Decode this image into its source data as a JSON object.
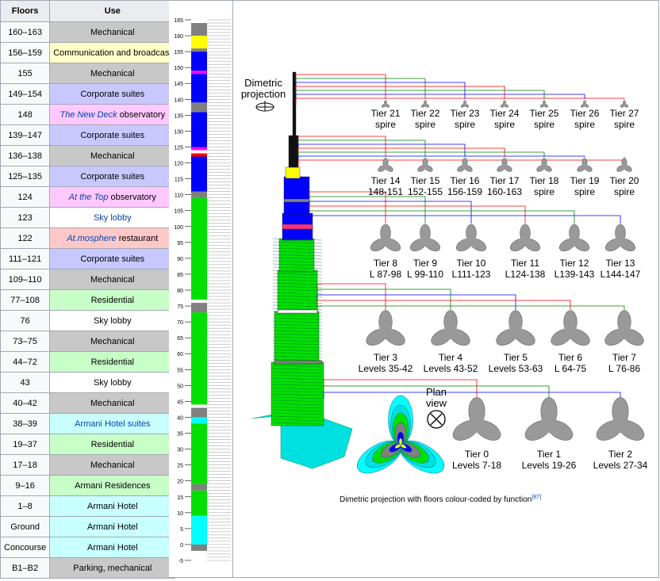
{
  "table": {
    "headers": [
      "Floors",
      "Use"
    ],
    "rows": [
      {
        "floors": "160–163",
        "use": "Mechanical",
        "cls": "c-mech"
      },
      {
        "floors": "156–159",
        "use": "Communication and broadcast",
        "cls": "c-comm"
      },
      {
        "floors": "155",
        "use": "Mechanical",
        "cls": "c-mech"
      },
      {
        "floors": "149–154",
        "use": "Corporate suites",
        "cls": "c-corp"
      },
      {
        "floors": "148",
        "use": "The New Deck observatory",
        "cls": "c-obs",
        "em": "The New Deck",
        "rest": " observatory"
      },
      {
        "floors": "139–147",
        "use": "Corporate suites",
        "cls": "c-corp"
      },
      {
        "floors": "136–138",
        "use": "Mechanical",
        "cls": "c-mech"
      },
      {
        "floors": "125–135",
        "use": "Corporate suites",
        "cls": "c-corp"
      },
      {
        "floors": "124",
        "use": "At the Top observatory",
        "cls": "c-obs",
        "em": "At the Top",
        "rest": " observatory"
      },
      {
        "floors": "123",
        "use": "Sky lobby",
        "cls": "c-sky",
        "link": true
      },
      {
        "floors": "122",
        "use": "At.mosphere restaurant",
        "cls": "c-rest",
        "em": "At.mosphere",
        "rest": " restaurant"
      },
      {
        "floors": "111–121",
        "use": "Corporate suites",
        "cls": "c-corp"
      },
      {
        "floors": "109–110",
        "use": "Mechanical",
        "cls": "c-mech"
      },
      {
        "floors": "77–108",
        "use": "Residential",
        "cls": "c-res"
      },
      {
        "floors": "76",
        "use": "Sky lobby",
        "cls": "c-sky"
      },
      {
        "floors": "73–75",
        "use": "Mechanical",
        "cls": "c-mech"
      },
      {
        "floors": "44–72",
        "use": "Residential",
        "cls": "c-res"
      },
      {
        "floors": "43",
        "use": "Sky lobby",
        "cls": "c-sky"
      },
      {
        "floors": "40–42",
        "use": "Mechanical",
        "cls": "c-mech"
      },
      {
        "floors": "38–39",
        "use": "Armani Hotel suites",
        "cls": "c-arm",
        "link": true
      },
      {
        "floors": "19–37",
        "use": "Residential",
        "cls": "c-res"
      },
      {
        "floors": "17–18",
        "use": "Mechanical",
        "cls": "c-mech"
      },
      {
        "floors": "9–16",
        "use": "Armani Residences",
        "cls": "c-res"
      },
      {
        "floors": "1–8",
        "use": "Armani Hotel",
        "cls": "c-arm"
      },
      {
        "floors": "Ground",
        "use": "Armani Hotel",
        "cls": "c-arm"
      },
      {
        "floors": "Concourse",
        "use": "Armani Hotel",
        "cls": "c-arm"
      },
      {
        "floors": "B1–B2",
        "use": "Parking, mechanical",
        "cls": "c-park"
      }
    ]
  },
  "scale": {
    "ticks": [
      "165",
      "160",
      "155",
      "150",
      "145",
      "140",
      "135",
      "130",
      "125",
      "120",
      "115",
      "110",
      "105",
      "100",
      "95",
      "90",
      "85",
      "80",
      "75",
      "70",
      "65",
      "60",
      "55",
      "50",
      "45",
      "40",
      "35",
      "30",
      "25",
      "20",
      "15",
      "10",
      "5",
      "0",
      "-5"
    ],
    "bands": [
      {
        "from": -2,
        "to": 0,
        "color": "#808080"
      },
      {
        "from": 0,
        "to": 9,
        "color": "#00ffff"
      },
      {
        "from": 9,
        "to": 17,
        "color": "#00e000"
      },
      {
        "from": 17,
        "to": 19,
        "color": "#808080"
      },
      {
        "from": 19,
        "to": 38,
        "color": "#00e000"
      },
      {
        "from": 38,
        "to": 40,
        "color": "#00ffff"
      },
      {
        "from": 40,
        "to": 43,
        "color": "#808080"
      },
      {
        "from": 43,
        "to": 44,
        "color": "#ffffff"
      },
      {
        "from": 44,
        "to": 73,
        "color": "#00e000"
      },
      {
        "from": 73,
        "to": 76,
        "color": "#808080"
      },
      {
        "from": 76,
        "to": 77,
        "color": "#ffffff"
      },
      {
        "from": 77,
        "to": 109,
        "color": "#00e000"
      },
      {
        "from": 109,
        "to": 111,
        "color": "#808080"
      },
      {
        "from": 111,
        "to": 122,
        "color": "#0000ff"
      },
      {
        "from": 122,
        "to": 123,
        "color": "#ff0000"
      },
      {
        "from": 123,
        "to": 124,
        "color": "#ffffff"
      },
      {
        "from": 124,
        "to": 125,
        "color": "#ff00ff"
      },
      {
        "from": 125,
        "to": 136,
        "color": "#0000ff"
      },
      {
        "from": 136,
        "to": 139,
        "color": "#808080"
      },
      {
        "from": 139,
        "to": 148,
        "color": "#0000ff"
      },
      {
        "from": 148,
        "to": 149,
        "color": "#ff00ff"
      },
      {
        "from": 149,
        "to": 155,
        "color": "#0000ff"
      },
      {
        "from": 155,
        "to": 156,
        "color": "#808080"
      },
      {
        "from": 156,
        "to": 160,
        "color": "#ffff00"
      },
      {
        "from": 160,
        "to": 164,
        "color": "#808080"
      }
    ]
  },
  "diagram": {
    "projection_label_1": "Dimetric",
    "projection_label_2": "projection",
    "plan_label_1": "Plan",
    "plan_label_2": "view",
    "caption": "Dimetric projection with floors colour-coded by function",
    "caption_ref": "[87]",
    "spire_tiers": [
      {
        "name": "Tier 21",
        "sub": "spire"
      },
      {
        "name": "Tier 22",
        "sub": "spire"
      },
      {
        "name": "Tier 23",
        "sub": "spire"
      },
      {
        "name": "Tier 24",
        "sub": "spire"
      },
      {
        "name": "Tier 25",
        "sub": "spire"
      },
      {
        "name": "Tier 26",
        "sub": "spire"
      },
      {
        "name": "Tier 27",
        "sub": "spire"
      }
    ],
    "upper_tiers": [
      {
        "name": "Tier 14",
        "sub": "148-151"
      },
      {
        "name": "Tier 15",
        "sub": "152-155"
      },
      {
        "name": "Tier 16",
        "sub": "156-159"
      },
      {
        "name": "Tier 17",
        "sub": "160-163"
      },
      {
        "name": "Tier 18",
        "sub": "spire"
      },
      {
        "name": "Tier 19",
        "sub": "spire"
      },
      {
        "name": "Tier 20",
        "sub": "spire"
      }
    ],
    "mid_tiers": [
      {
        "name": "Tier 8",
        "sub": "L 87-98"
      },
      {
        "name": "Tier 9",
        "sub": "L 99-110"
      },
      {
        "name": "Tier 10",
        "sub": "L111-123"
      },
      {
        "name": "Tier 11",
        "sub": "L124-138"
      },
      {
        "name": "Tier 12",
        "sub": "L139-143"
      },
      {
        "name": "Tier 13",
        "sub": "L144-147"
      }
    ],
    "low_tiers": [
      {
        "name": "Tier 3",
        "sub": "Levels 35-42"
      },
      {
        "name": "Tier 4",
        "sub": "Levels 43-52"
      },
      {
        "name": "Tier 5",
        "sub": "Levels 53-63"
      },
      {
        "name": "Tier 6",
        "sub": "L 64-75"
      },
      {
        "name": "Tier 7",
        "sub": "L 76-86"
      }
    ],
    "base_tiers": [
      {
        "name": "Tier 0",
        "sub": "Levels 7-18"
      },
      {
        "name": "Tier 1",
        "sub": "Levels 19-26"
      },
      {
        "name": "Tier 2",
        "sub": "Levels 27-34"
      }
    ],
    "line_colors": [
      "#ff0000",
      "#008000",
      "#0000ff"
    ]
  }
}
